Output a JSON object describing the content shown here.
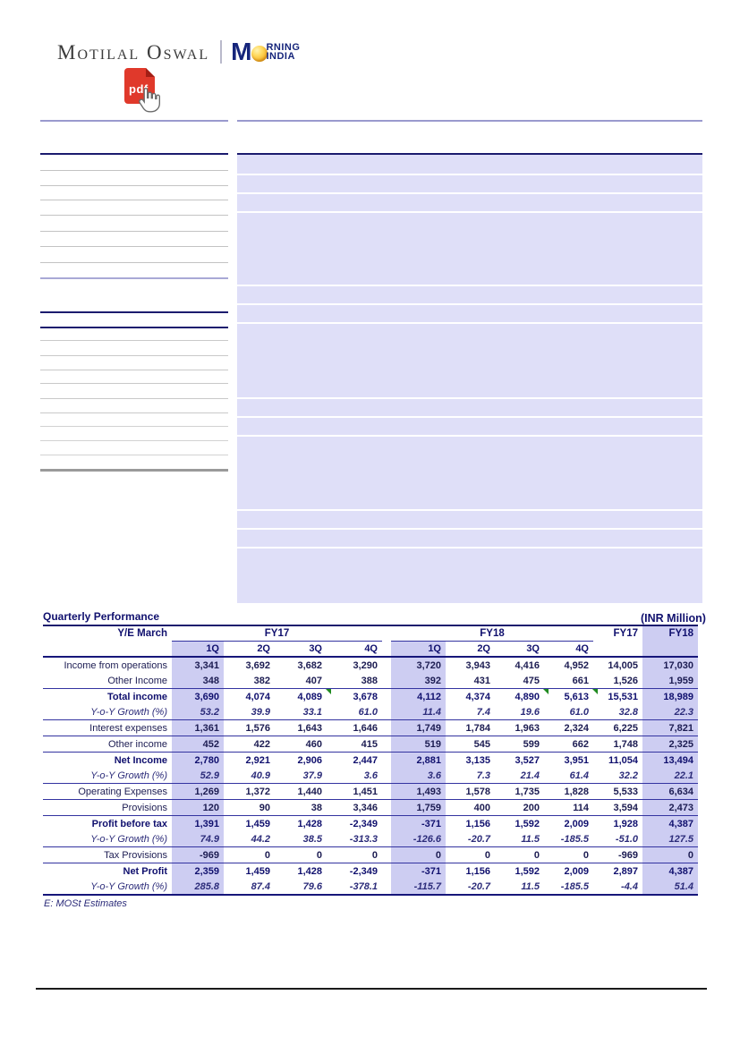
{
  "colors": {
    "accent_navy": "#10106e",
    "highlight_lavender": "#cdcdf2",
    "panel_lavender": "#dfdff8",
    "pdf_red": "#e0392b",
    "sun_yellow": "#f6b52a",
    "flag_green": "#1f8a1f"
  },
  "header": {
    "brand": "Motilal Oswal",
    "morning_logo": {
      "m": "M",
      "sun_icon": "sun-icon",
      "top": "RNING",
      "bottom": "INDIA"
    },
    "pdf_label": "pdf"
  },
  "table": {
    "title": "Quarterly Performance",
    "unit_note": "(INR Million)",
    "ye_label": "Y/E March",
    "group_fy17": "FY17",
    "group_fy18": "FY18",
    "annual_fy17": "FY17",
    "annual_fy18": "FY18",
    "quarter_headers": [
      "1Q",
      "2Q",
      "3Q",
      "4Q",
      "1Q",
      "2Q",
      "3Q",
      "4Q"
    ],
    "highlight_value_columns": [
      0,
      4,
      9
    ],
    "footnote": "E: MOSt Estimates",
    "rows": [
      {
        "label": "Income from operations",
        "style": "normal",
        "sep": false,
        "values": [
          "3,341",
          "3,692",
          "3,682",
          "3,290",
          "3,720",
          "3,943",
          "4,416",
          "4,952",
          "14,005",
          "17,030"
        ]
      },
      {
        "label": "Other Income",
        "style": "normal",
        "sep": true,
        "values": [
          "348",
          "382",
          "407",
          "388",
          "392",
          "431",
          "475",
          "661",
          "1,526",
          "1,959"
        ]
      },
      {
        "label": "Total income",
        "style": "strong",
        "sep": false,
        "flags": [
          2,
          6,
          7
        ],
        "values": [
          "3,690",
          "4,074",
          "4,089",
          "3,678",
          "4,112",
          "4,374",
          "4,890",
          "5,613",
          "15,531",
          "18,989"
        ]
      },
      {
        "label": "Y-o-Y Growth (%)",
        "style": "growth",
        "sep": true,
        "values": [
          "53.2",
          "39.9",
          "33.1",
          "61.0",
          "11.4",
          "7.4",
          "19.6",
          "61.0",
          "32.8",
          "22.3"
        ]
      },
      {
        "label": "Interest expenses",
        "style": "normal",
        "sep": true,
        "values": [
          "1,361",
          "1,576",
          "1,643",
          "1,646",
          "1,749",
          "1,784",
          "1,963",
          "2,324",
          "6,225",
          "7,821"
        ]
      },
      {
        "label": "Other income",
        "style": "normal",
        "sep": true,
        "values": [
          "452",
          "422",
          "460",
          "415",
          "519",
          "545",
          "599",
          "662",
          "1,748",
          "2,325"
        ]
      },
      {
        "label": "Net Income",
        "style": "strong",
        "sep": false,
        "values": [
          "2,780",
          "2,921",
          "2,906",
          "2,447",
          "2,881",
          "3,135",
          "3,527",
          "3,951",
          "11,054",
          "13,494"
        ]
      },
      {
        "label": "Y-o-Y Growth (%)",
        "style": "growth",
        "sep": true,
        "values": [
          "52.9",
          "40.9",
          "37.9",
          "3.6",
          "3.6",
          "7.3",
          "21.4",
          "61.4",
          "32.2",
          "22.1"
        ]
      },
      {
        "label": "Operating Expenses",
        "style": "normal",
        "sep": true,
        "values": [
          "1,269",
          "1,372",
          "1,440",
          "1,451",
          "1,493",
          "1,578",
          "1,735",
          "1,828",
          "5,533",
          "6,634"
        ]
      },
      {
        "label": "Provisions",
        "style": "normal",
        "sep": true,
        "values": [
          "120",
          "90",
          "38",
          "3,346",
          "1,759",
          "400",
          "200",
          "114",
          "3,594",
          "2,473"
        ]
      },
      {
        "label": "Profit before tax",
        "style": "strong",
        "sep": false,
        "values": [
          "1,391",
          "1,459",
          "1,428",
          "-2,349",
          "-371",
          "1,156",
          "1,592",
          "2,009",
          "1,928",
          "4,387"
        ]
      },
      {
        "label": "Y-o-Y Growth (%)",
        "style": "growth",
        "sep": true,
        "values": [
          "74.9",
          "44.2",
          "38.5",
          "-313.3",
          "-126.6",
          "-20.7",
          "11.5",
          "-185.5",
          "-51.0",
          "127.5"
        ]
      },
      {
        "label": "Tax Provisions",
        "style": "normal",
        "sep": true,
        "values": [
          "-969",
          "0",
          "0",
          "0",
          "0",
          "0",
          "0",
          "0",
          "-969",
          "0"
        ]
      },
      {
        "label": "Net Profit",
        "style": "strong",
        "sep": false,
        "values": [
          "2,359",
          "1,459",
          "1,428",
          "-2,349",
          "-371",
          "1,156",
          "1,592",
          "2,009",
          "2,897",
          "4,387"
        ]
      },
      {
        "label": "Y-o-Y Growth (%)",
        "style": "growth",
        "sep": true,
        "last": true,
        "values": [
          "285.8",
          "87.4",
          "79.6",
          "-378.1",
          "-115.7",
          "-20.7",
          "11.5",
          "-185.5",
          "-4.4",
          "51.4"
        ]
      }
    ]
  }
}
